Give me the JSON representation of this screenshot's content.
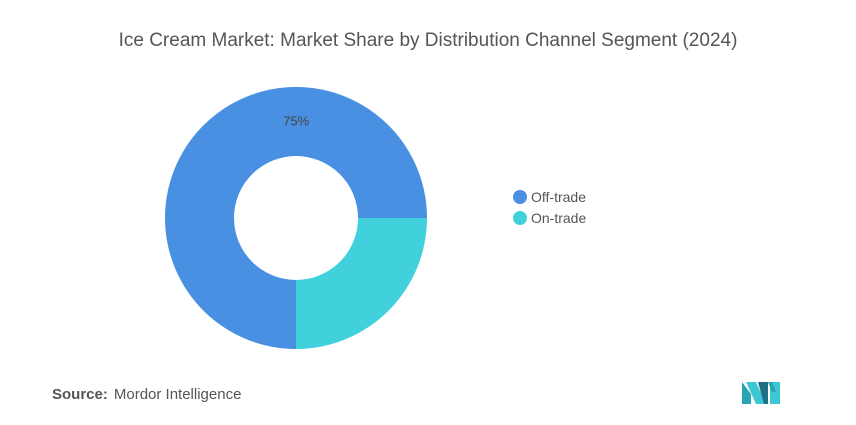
{
  "title": "Ice Cream Market: Market Share by Distribution Channel Segment (2024)",
  "source": {
    "label": "Source:",
    "value": "Mordor Intelligence"
  },
  "logo": {
    "icon": "mordor-intelligence-logo",
    "colors": [
      "#1f3b57",
      "#3cc7d4"
    ]
  },
  "chart_data": {
    "type": "pie",
    "variant": "donut",
    "title": "Ice Cream Market: Market Share by Distribution Channel Segment (2024)",
    "slices": [
      {
        "name": "Off-trade",
        "value": 75,
        "label": "75%",
        "color": "#4a90e2"
      },
      {
        "name": "On-trade",
        "value": 25,
        "label": "",
        "color": "#40d1dc"
      }
    ],
    "legend": {
      "placement": "right"
    }
  }
}
